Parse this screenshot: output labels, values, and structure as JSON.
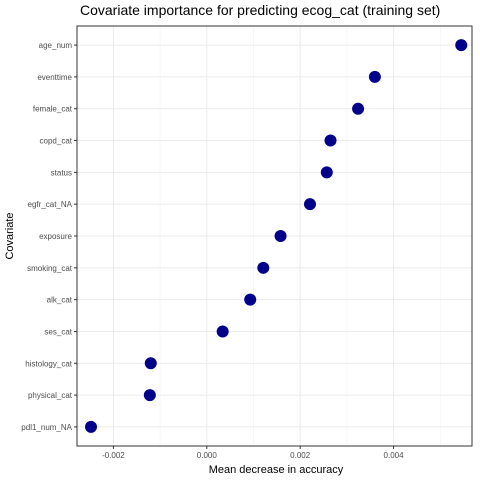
{
  "chart_data": {
    "type": "scatter",
    "title": "Covariate importance for predicting ecog_cat (training set)",
    "xlabel": "Mean decrease in accuracy",
    "ylabel": "Covariate",
    "xlim": [
      -0.00278,
      0.00568
    ],
    "xticks": [
      -0.002,
      0.0,
      0.002,
      0.004
    ],
    "xtick_labels": [
      "-0.002",
      "0.000",
      "0.002",
      "0.004"
    ],
    "grid": true,
    "point_color": "#00008B",
    "categories": [
      "age_num",
      "eventtime",
      "female_cat",
      "copd_cat",
      "status",
      "egfr_cat_NA",
      "exposure",
      "smoking_cat",
      "alk_cat",
      "ses_cat",
      "histology_cat",
      "physical_cat",
      "pdl1_num_NA"
    ],
    "values": [
      0.00545,
      0.0036,
      0.00324,
      0.00265,
      0.00257,
      0.00221,
      0.00158,
      0.00121,
      0.00093,
      0.00034,
      -0.0012,
      -0.00122,
      -0.00248
    ]
  }
}
